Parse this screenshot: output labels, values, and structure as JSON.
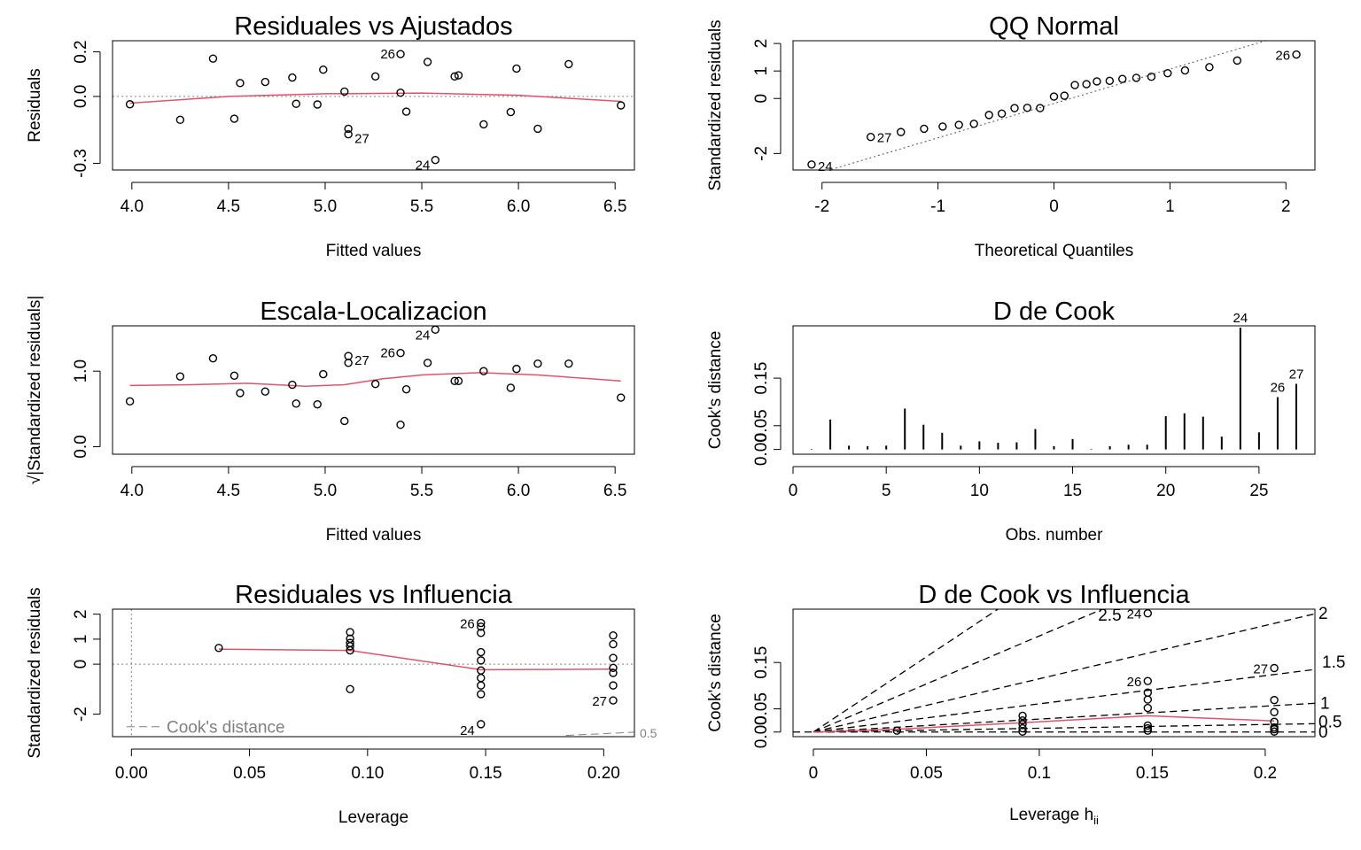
{
  "figure": {
    "chart_data": [
      {
        "id": "p1",
        "type": "scatter",
        "title": "Residuales vs Ajustados",
        "xlabel": "Fitted values",
        "ylabel": "Residuals",
        "xlim": [
          3.9,
          6.6
        ],
        "ylim": [
          -0.33,
          0.25
        ],
        "xticks": [
          4.0,
          4.5,
          5.0,
          5.5,
          6.0,
          6.5
        ],
        "xtick_labels": [
          "4.0",
          "4.5",
          "5.0",
          "5.5",
          "6.0",
          "6.5"
        ],
        "yticks": [
          -0.3,
          0.0,
          0.2
        ],
        "ytick_labels": [
          "-0.3",
          "0.0",
          "0.2"
        ],
        "hline": 0,
        "points": [
          {
            "x": 3.99,
            "y": -0.035
          },
          {
            "x": 4.25,
            "y": -0.105
          },
          {
            "x": 4.42,
            "y": 0.17
          },
          {
            "x": 4.53,
            "y": -0.1
          },
          {
            "x": 4.56,
            "y": 0.06
          },
          {
            "x": 4.69,
            "y": 0.065
          },
          {
            "x": 4.83,
            "y": 0.085
          },
          {
            "x": 4.85,
            "y": -0.033
          },
          {
            "x": 4.96,
            "y": -0.036
          },
          {
            "x": 4.99,
            "y": 0.12
          },
          {
            "x": 5.1,
            "y": 0.022
          },
          {
            "x": 5.12,
            "y": -0.145
          },
          {
            "x": 5.12,
            "y": -0.17,
            "label": "27"
          },
          {
            "x": 5.26,
            "y": 0.09
          },
          {
            "x": 5.39,
            "y": 0.19,
            "label": "26"
          },
          {
            "x": 5.39,
            "y": 0.017
          },
          {
            "x": 5.42,
            "y": -0.068
          },
          {
            "x": 5.53,
            "y": 0.155
          },
          {
            "x": 5.57,
            "y": -0.285,
            "label": "24"
          },
          {
            "x": 5.67,
            "y": 0.09
          },
          {
            "x": 5.69,
            "y": 0.095
          },
          {
            "x": 5.82,
            "y": -0.125
          },
          {
            "x": 5.96,
            "y": -0.07
          },
          {
            "x": 5.99,
            "y": 0.125
          },
          {
            "x": 6.1,
            "y": -0.145
          },
          {
            "x": 6.26,
            "y": 0.145
          },
          {
            "x": 6.53,
            "y": -0.04
          }
        ],
        "smooth": [
          [
            3.99,
            -0.03
          ],
          [
            4.5,
            0.0
          ],
          [
            5.0,
            0.012
          ],
          [
            5.5,
            0.015
          ],
          [
            6.0,
            0.005
          ],
          [
            6.53,
            -0.022
          ]
        ]
      },
      {
        "id": "p2",
        "type": "scatter",
        "title": "QQ Normal",
        "xlabel": "Theoretical Quantiles",
        "ylabel": "Standardized residuals",
        "xlim": [
          -2.25,
          2.25
        ],
        "ylim": [
          -2.6,
          2.1
        ],
        "xticks": [
          -2,
          -1,
          0,
          1,
          2
        ],
        "xtick_labels": [
          "-2",
          "-1",
          "0",
          "1",
          "2"
        ],
        "yticks": [
          -2,
          0,
          1,
          2
        ],
        "ytick_labels": [
          "-2",
          "0",
          "1",
          "2"
        ],
        "refline": {
          "slope": 1.25,
          "intercept": -0.18
        },
        "points": [
          {
            "x": -2.09,
            "y": -2.4,
            "label": "24"
          },
          {
            "x": -1.58,
            "y": -1.4,
            "label": "27"
          },
          {
            "x": -1.32,
            "y": -1.22
          },
          {
            "x": -1.12,
            "y": -1.1
          },
          {
            "x": -0.96,
            "y": -1.02
          },
          {
            "x": -0.82,
            "y": -0.96
          },
          {
            "x": -0.69,
            "y": -0.92
          },
          {
            "x": -0.56,
            "y": -0.6
          },
          {
            "x": -0.45,
            "y": -0.55
          },
          {
            "x": -0.34,
            "y": -0.35
          },
          {
            "x": -0.23,
            "y": -0.34
          },
          {
            "x": -0.12,
            "y": -0.35
          },
          {
            "x": 0.0,
            "y": 0.07
          },
          {
            "x": 0.09,
            "y": 0.1
          },
          {
            "x": 0.18,
            "y": 0.49
          },
          {
            "x": 0.28,
            "y": 0.52
          },
          {
            "x": 0.37,
            "y": 0.62
          },
          {
            "x": 0.48,
            "y": 0.64
          },
          {
            "x": 0.59,
            "y": 0.71
          },
          {
            "x": 0.71,
            "y": 0.75
          },
          {
            "x": 0.84,
            "y": 0.79
          },
          {
            "x": 0.98,
            "y": 0.92
          },
          {
            "x": 1.13,
            "y": 1.02
          },
          {
            "x": 1.34,
            "y": 1.14
          },
          {
            "x": 1.58,
            "y": 1.38
          },
          {
            "x": 2.09,
            "y": 1.6,
            "label": "26"
          }
        ]
      },
      {
        "id": "p3",
        "type": "scatter",
        "title": "Escala-Localizacion",
        "xlabel": "Fitted values",
        "ylabel": "√|Standardized residuals|",
        "xlim": [
          3.9,
          6.6
        ],
        "ylim": [
          -0.1,
          1.6
        ],
        "xticks": [
          4.0,
          4.5,
          5.0,
          5.5,
          6.0,
          6.5
        ],
        "xtick_labels": [
          "4.0",
          "4.5",
          "5.0",
          "5.5",
          "6.0",
          "6.5"
        ],
        "yticks": [
          0.0,
          1.0
        ],
        "ytick_labels": [
          "0.0",
          "1.0"
        ],
        "points": [
          {
            "x": 3.99,
            "y": 0.6
          },
          {
            "x": 4.25,
            "y": 0.93
          },
          {
            "x": 4.42,
            "y": 1.17
          },
          {
            "x": 4.53,
            "y": 0.94
          },
          {
            "x": 4.56,
            "y": 0.71
          },
          {
            "x": 4.69,
            "y": 0.73
          },
          {
            "x": 4.83,
            "y": 0.82
          },
          {
            "x": 4.85,
            "y": 0.57
          },
          {
            "x": 4.96,
            "y": 0.56
          },
          {
            "x": 4.99,
            "y": 0.96
          },
          {
            "x": 5.1,
            "y": 0.34
          },
          {
            "x": 5.12,
            "y": 1.11
          },
          {
            "x": 5.12,
            "y": 1.2,
            "label": "27"
          },
          {
            "x": 5.26,
            "y": 0.83
          },
          {
            "x": 5.39,
            "y": 1.24,
            "label": "26"
          },
          {
            "x": 5.39,
            "y": 0.29
          },
          {
            "x": 5.42,
            "y": 0.76
          },
          {
            "x": 5.53,
            "y": 1.11
          },
          {
            "x": 5.57,
            "y": 1.55,
            "label": "24"
          },
          {
            "x": 5.67,
            "y": 0.87
          },
          {
            "x": 5.69,
            "y": 0.87
          },
          {
            "x": 5.82,
            "y": 1.0
          },
          {
            "x": 5.96,
            "y": 0.78
          },
          {
            "x": 5.99,
            "y": 1.03
          },
          {
            "x": 6.1,
            "y": 1.1
          },
          {
            "x": 6.26,
            "y": 1.1
          },
          {
            "x": 6.53,
            "y": 0.65
          }
        ],
        "smooth": [
          [
            3.99,
            0.81
          ],
          [
            4.3,
            0.82
          ],
          [
            4.6,
            0.84
          ],
          [
            4.9,
            0.8
          ],
          [
            5.1,
            0.82
          ],
          [
            5.3,
            0.9
          ],
          [
            5.5,
            0.95
          ],
          [
            5.8,
            0.98
          ],
          [
            6.1,
            0.95
          ],
          [
            6.53,
            0.87
          ]
        ]
      },
      {
        "id": "p4",
        "type": "bar",
        "title": "D de Cook",
        "xlabel": "Obs. number",
        "ylabel": "Cook's distance",
        "xlim": [
          0,
          28
        ],
        "ylim": [
          -0.01,
          0.26
        ],
        "xticks": [
          0,
          5,
          10,
          15,
          20,
          25
        ],
        "xtick_labels": [
          "0",
          "5",
          "10",
          "15",
          "20",
          "25"
        ],
        "yticks": [
          0.0,
          0.05,
          0.15
        ],
        "ytick_labels": [
          "0.00",
          "0.05",
          "0.15"
        ],
        "x": [
          1,
          2,
          3,
          4,
          5,
          6,
          7,
          8,
          9,
          10,
          11,
          12,
          13,
          14,
          15,
          16,
          17,
          18,
          19,
          20,
          21,
          22,
          23,
          24,
          25,
          26,
          27
        ],
        "values": [
          0.001,
          0.063,
          0.008,
          0.007,
          0.008,
          0.086,
          0.052,
          0.035,
          0.008,
          0.017,
          0.014,
          0.015,
          0.043,
          0.007,
          0.022,
          0.001,
          0.007,
          0.01,
          0.01,
          0.07,
          0.076,
          0.069,
          0.027,
          0.256,
          0.036,
          0.11,
          0.138
        ],
        "point_labels": {
          "24": "24",
          "26": "26",
          "27": "27"
        }
      },
      {
        "id": "p5",
        "type": "scatter",
        "title": "Residuales vs Influencia",
        "xlabel": "Leverage",
        "ylabel": "Standardized residuals",
        "xlim": [
          -0.008,
          0.213
        ],
        "ylim": [
          -2.9,
          2.2
        ],
        "xticks": [
          0.0,
          0.05,
          0.1,
          0.15,
          0.2
        ],
        "xtick_labels": [
          "0.00",
          "0.05",
          "0.10",
          "0.15",
          "0.20"
        ],
        "yticks": [
          -2,
          0,
          1,
          2
        ],
        "ytick_labels": [
          "-2",
          "0",
          "1",
          "2"
        ],
        "legend": "Cook's distance",
        "contour_label": "0.5",
        "points": [
          {
            "x": 0.037,
            "y": 0.65
          },
          {
            "x": 0.0926,
            "y": 1.28
          },
          {
            "x": 0.0926,
            "y": 1.02
          },
          {
            "x": 0.0926,
            "y": 0.85
          },
          {
            "x": 0.0926,
            "y": 0.72
          },
          {
            "x": 0.0926,
            "y": 0.55
          },
          {
            "x": 0.0926,
            "y": -1.0
          },
          {
            "x": 0.148,
            "y": 1.65,
            "label": "26"
          },
          {
            "x": 0.148,
            "y": 1.5
          },
          {
            "x": 0.148,
            "y": 1.25
          },
          {
            "x": 0.148,
            "y": 0.48
          },
          {
            "x": 0.148,
            "y": 0.15
          },
          {
            "x": 0.148,
            "y": -0.25
          },
          {
            "x": 0.148,
            "y": -0.55
          },
          {
            "x": 0.148,
            "y": -0.85
          },
          {
            "x": 0.148,
            "y": -1.2
          },
          {
            "x": 0.148,
            "y": -2.4,
            "label": "24"
          },
          {
            "x": 0.204,
            "y": 1.15
          },
          {
            "x": 0.204,
            "y": 0.8
          },
          {
            "x": 0.204,
            "y": 0.25
          },
          {
            "x": 0.204,
            "y": -0.15
          },
          {
            "x": 0.204,
            "y": -0.35
          },
          {
            "x": 0.204,
            "y": -0.85
          },
          {
            "x": 0.204,
            "y": -1.45,
            "label": "27"
          }
        ],
        "smooth": [
          [
            0.037,
            0.6
          ],
          [
            0.0926,
            0.55
          ],
          [
            0.148,
            -0.22
          ],
          [
            0.204,
            -0.2
          ]
        ]
      },
      {
        "id": "p6",
        "type": "scatter",
        "title": "D de Cook vs Influencia",
        "xlabel": "Leverage  hii",
        "ylabel": "Cook's distance",
        "xlim": [
          -0.009,
          0.222
        ],
        "ylim": [
          -0.01,
          0.265
        ],
        "xticks": [
          0,
          0.05,
          0.1,
          0.15,
          0.2
        ],
        "xtick_labels": [
          "0",
          "0.05",
          "0.1",
          "0.15",
          "0.2"
        ],
        "yticks": [
          0.0,
          0.05,
          0.15
        ],
        "ytick_labels": [
          "0.00",
          "0.05",
          "0.15"
        ],
        "contours": [
          {
            "label": "0.5",
            "end": 0.018
          },
          {
            "label": "1",
            "end": 0.062
          },
          {
            "label": "1.5",
            "end": 0.135
          },
          {
            "label": "2",
            "end": 0.255
          },
          {
            "label": "2.5",
            "y_at_edge": 0.46
          },
          {
            "label": "",
            "y_at_edge": 0.72
          }
        ],
        "points": [
          {
            "x": 0.037,
            "y": 0.003
          },
          {
            "x": 0.0926,
            "y": 0.035
          },
          {
            "x": 0.0926,
            "y": 0.025
          },
          {
            "x": 0.0926,
            "y": 0.017
          },
          {
            "x": 0.0926,
            "y": 0.008
          },
          {
            "x": 0.0926,
            "y": 0.001
          },
          {
            "x": 0.148,
            "y": 0.256,
            "label": "24"
          },
          {
            "x": 0.148,
            "y": 0.11,
            "label": "26"
          },
          {
            "x": 0.148,
            "y": 0.085
          },
          {
            "x": 0.148,
            "y": 0.07
          },
          {
            "x": 0.148,
            "y": 0.052
          },
          {
            "x": 0.148,
            "y": 0.014
          },
          {
            "x": 0.148,
            "y": 0.008
          },
          {
            "x": 0.148,
            "y": 0.003
          },
          {
            "x": 0.204,
            "y": 0.138,
            "label": "27"
          },
          {
            "x": 0.204,
            "y": 0.069
          },
          {
            "x": 0.204,
            "y": 0.043
          },
          {
            "x": 0.204,
            "y": 0.022
          },
          {
            "x": 0.204,
            "y": 0.01
          },
          {
            "x": 0.204,
            "y": 0.006
          },
          {
            "x": 0.204,
            "y": 0.001
          }
        ],
        "smooth": [
          [
            0,
            0
          ],
          [
            0.037,
            0.006
          ],
          [
            0.0926,
            0.02
          ],
          [
            0.148,
            0.035
          ],
          [
            0.204,
            0.024
          ]
        ]
      }
    ]
  },
  "colors": {
    "smooth": "#DF536B",
    "reference": "#808080",
    "ink": "#000000"
  }
}
